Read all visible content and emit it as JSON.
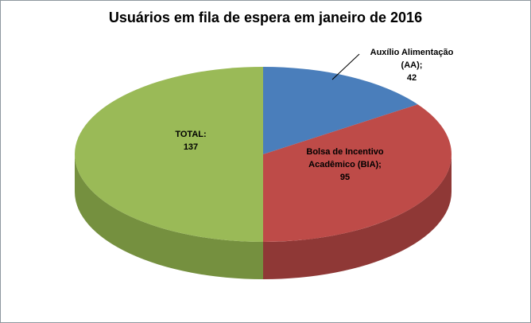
{
  "chart_data": {
    "type": "pie",
    "style": "3d",
    "title": "Usuários em fila de espera em janeiro de 2016",
    "legend": "none",
    "start_angle_deg": 0,
    "rotation": "clockwise-from-top",
    "background": "#FFFFFF",
    "frame_border_color": "#8E989F",
    "slices": [
      {
        "name": "Auxílio Alimentação (AA)",
        "value": 42,
        "color": "#4A7EBB",
        "side_color": "#33598C",
        "label_lines": [
          "Auxílio Alimentação",
          "(AA);",
          "42"
        ],
        "label_placement": "outside-callout"
      },
      {
        "name": "Bolsa de Incentivo Acadêmico (BIA)",
        "value": 95,
        "color": "#BE4B48",
        "side_color": "#8F3836",
        "label_lines": [
          "Bolsa de Incentivo",
          "Acadêmico (BIA);",
          "95"
        ],
        "label_placement": "inside"
      },
      {
        "name": "TOTAL",
        "value": 137,
        "color": "#9ABA57",
        "side_color": "#75903F",
        "label_lines": [
          "TOTAL:",
          "137"
        ],
        "label_placement": "inside"
      }
    ]
  }
}
